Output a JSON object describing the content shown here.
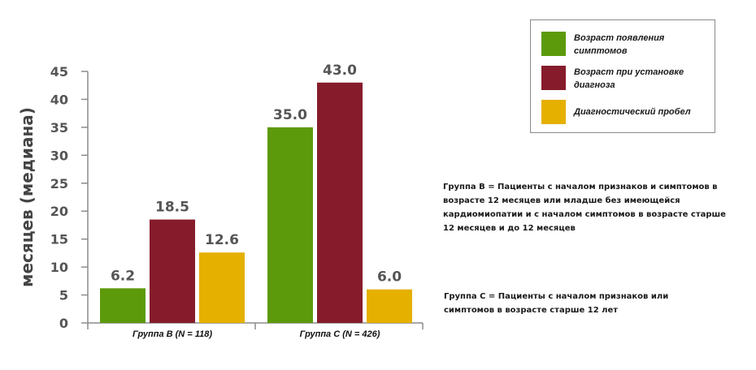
{
  "chart_data": {
    "type": "bar",
    "ylabel": "месяцев (медиана)",
    "ylim": [
      0,
      45
    ],
    "yticks": [
      0,
      5,
      10,
      15,
      20,
      25,
      30,
      35,
      40,
      45
    ],
    "categories": [
      "Группа B (N = 118)",
      "Группа C (N = 426)"
    ],
    "series": [
      {
        "name": "Возраст появления симптомов",
        "color": "#5c9a0c",
        "values": [
          6.2,
          35.0
        ],
        "labels": [
          "6.2",
          "35.0"
        ]
      },
      {
        "name": "Возраст при установке диагноза",
        "color": "#861c2b",
        "values": [
          18.5,
          43.0
        ],
        "labels": [
          "18.5",
          "43.0"
        ]
      },
      {
        "name": "Диагностический пробел",
        "color": "#e5b000",
        "values": [
          12.6,
          6.0
        ],
        "labels": [
          "12.6",
          "6.0"
        ]
      }
    ],
    "legend_position": "top-right",
    "grid": false
  },
  "legend": {
    "items": [
      {
        "label": "Возраст появления симптомов",
        "color": "#5c9a0c"
      },
      {
        "label": "Возраст при установке диагноза",
        "color": "#861c2b"
      },
      {
        "label": "Диагностический пробел",
        "color": "#e5b000"
      }
    ]
  },
  "notes": {
    "group_b": "Группа B = Пациенты с началом признаков и симптомов в возрасте 12 месяцев или младше без имеющейся кардиомиопатии и с началом симптомов в возрасте старше 12 месяцев и до 12 месяцев",
    "group_c": "Группа C = Пациенты с началом признаков или симптомов в возрасте старше 12 лет"
  }
}
